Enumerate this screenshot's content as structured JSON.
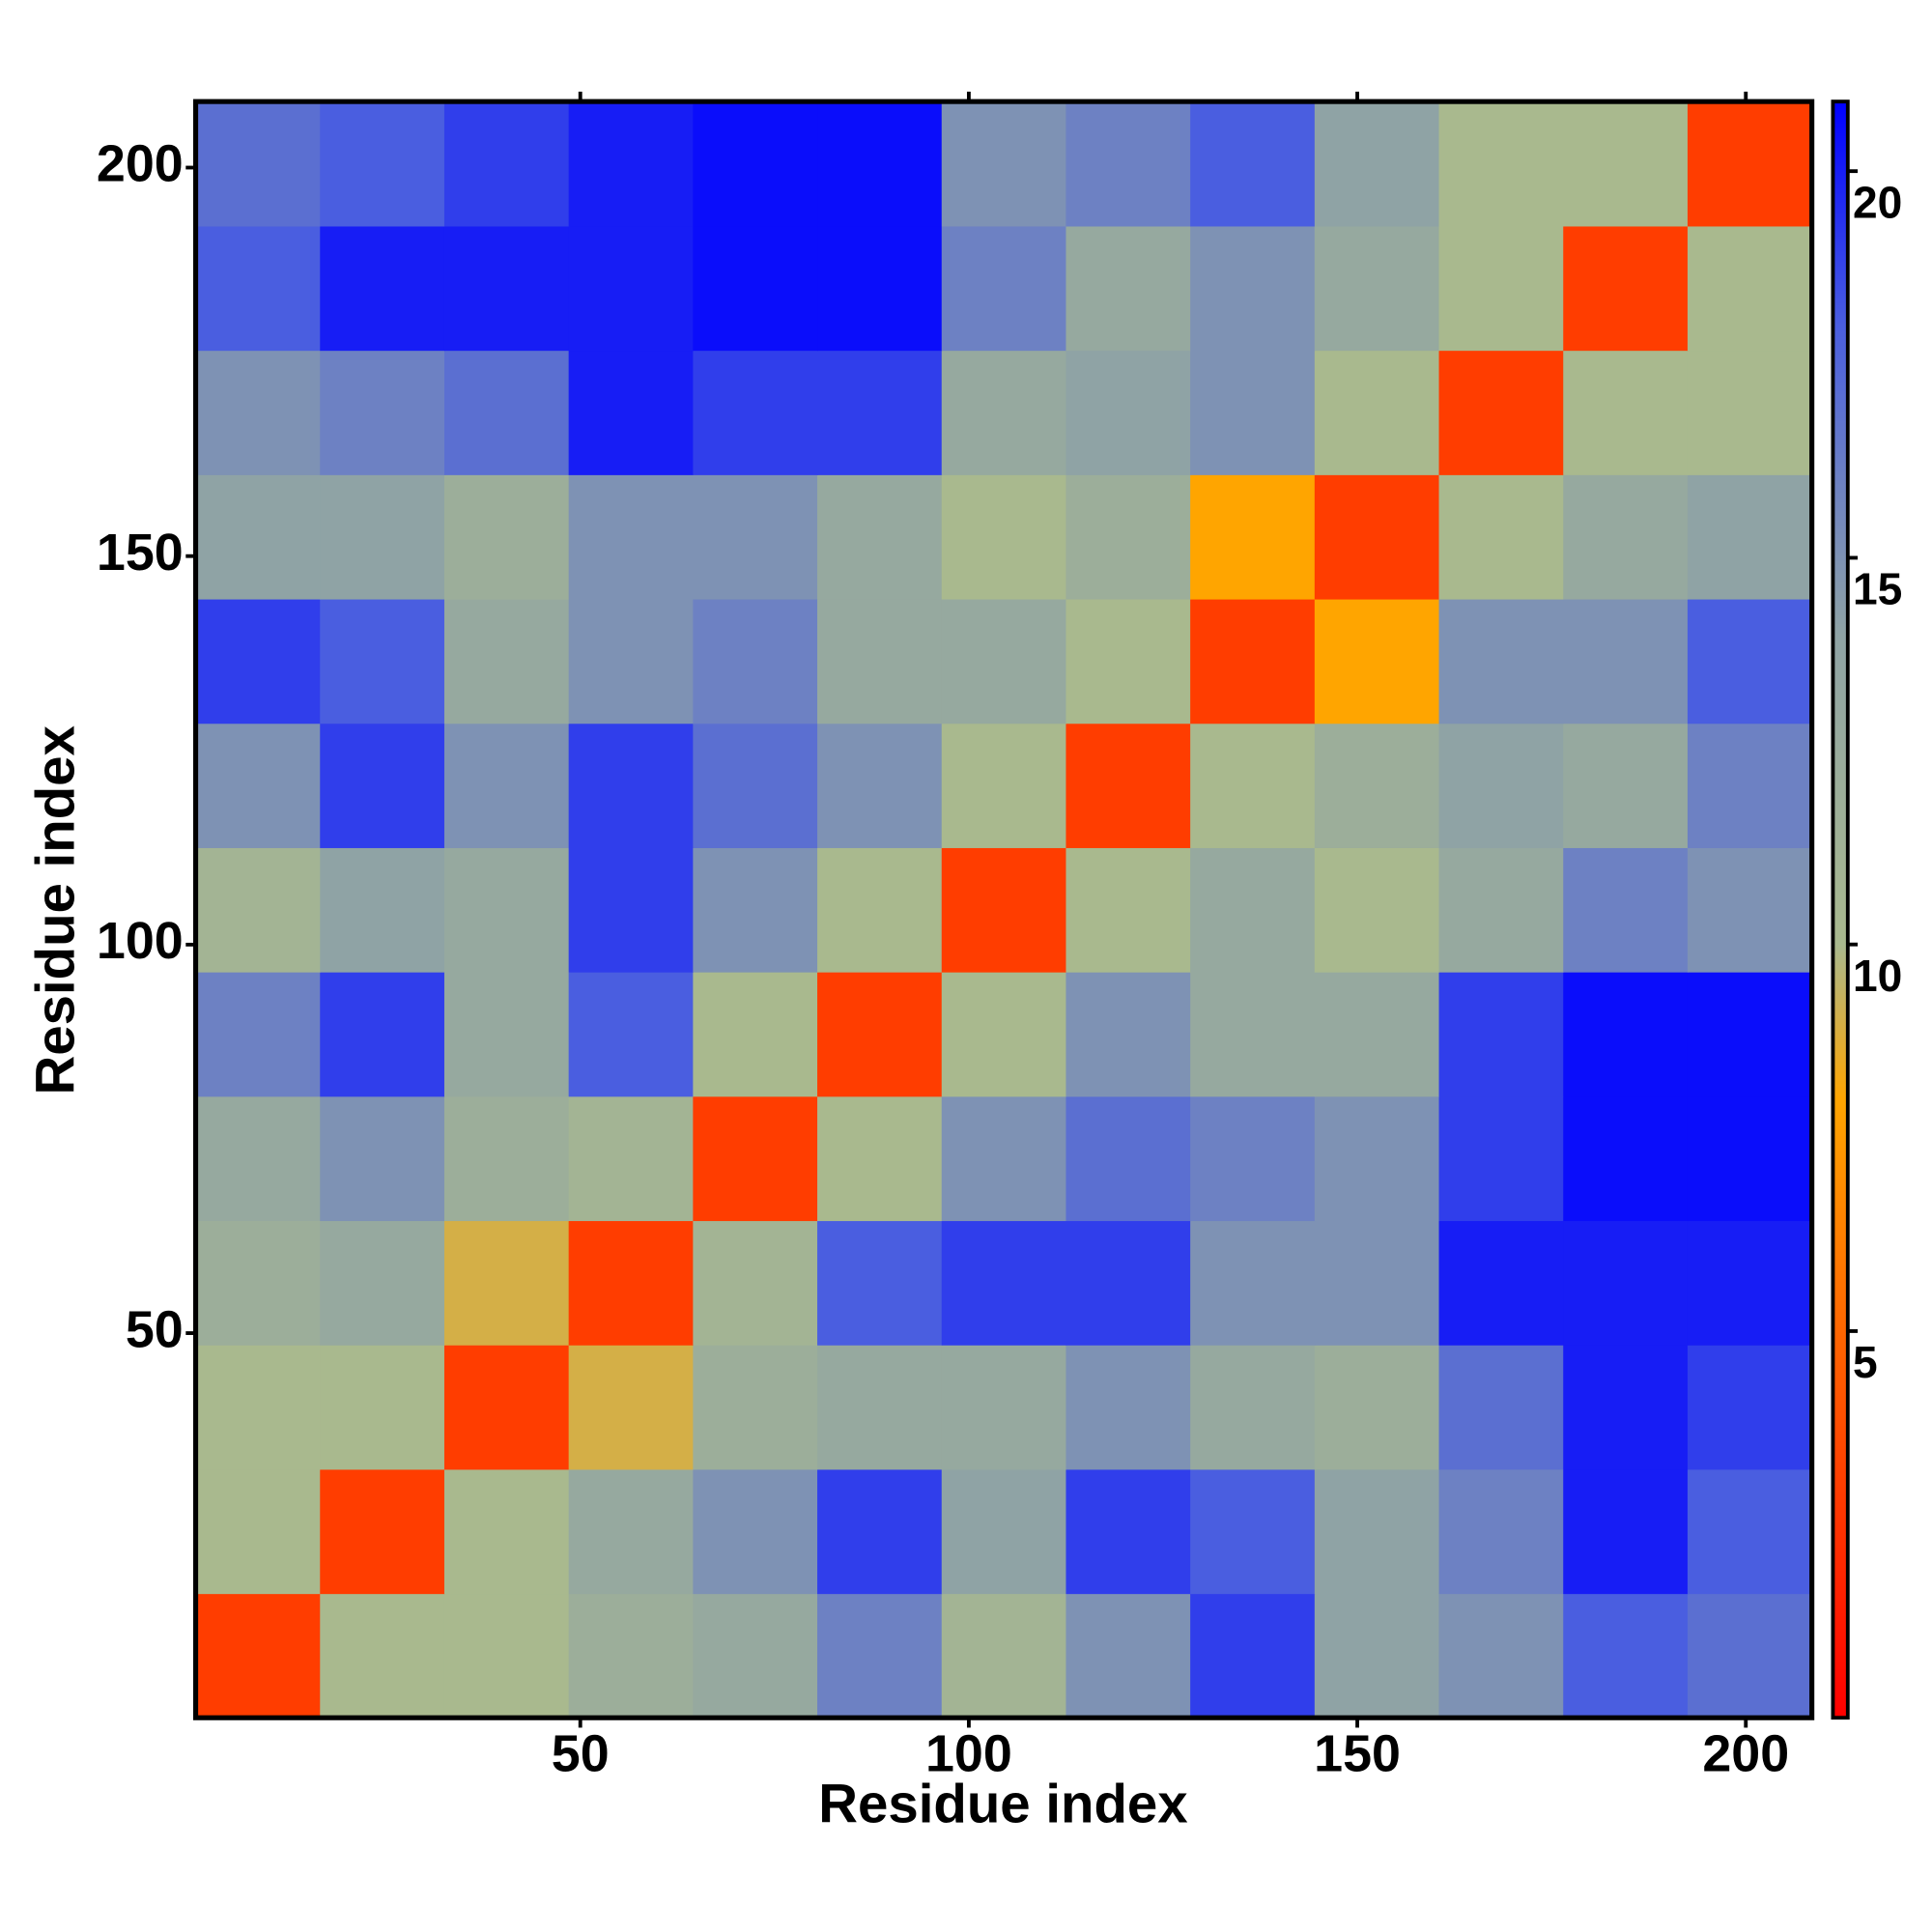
{
  "chart_data": {
    "type": "heatmap",
    "xlabel": "Residue index",
    "ylabel": "Residue index",
    "xbins": [
      0.5,
      16.5,
      32.5,
      48.5,
      64.5,
      80.5,
      96.5,
      112.5,
      128.5,
      144.5,
      160.5,
      176.5,
      192.5,
      208.5
    ],
    "ybins": [
      0.5,
      16.5,
      32.5,
      48.5,
      64.5,
      80.5,
      96.5,
      112.5,
      128.5,
      144.5,
      160.5,
      176.5,
      192.5,
      208.5
    ],
    "xlim": [
      0.5,
      208.5
    ],
    "ylim": [
      0.5,
      208.5
    ],
    "xticks": [
      50,
      100,
      150,
      200
    ],
    "yticks": [
      50,
      100,
      150,
      200
    ],
    "values": [
      [
        3,
        10,
        10,
        12,
        13,
        16,
        11,
        15,
        19,
        14,
        15,
        18,
        17
      ],
      [
        10,
        3,
        10,
        13,
        15,
        19,
        14,
        19,
        18,
        14,
        16,
        20,
        18
      ],
      [
        10,
        10,
        3,
        9,
        12,
        13,
        13,
        15,
        13,
        12,
        17,
        20,
        19
      ],
      [
        12,
        13,
        9,
        3,
        11,
        18,
        19,
        19,
        15,
        15,
        20,
        20,
        20
      ],
      [
        13,
        15,
        12,
        11,
        3,
        10,
        15,
        17,
        16,
        15,
        19,
        20.5,
        20.5
      ],
      [
        16,
        19,
        13,
        18,
        10,
        3,
        10,
        15,
        13,
        13,
        19,
        20.5,
        20.5
      ],
      [
        11,
        14,
        13,
        19,
        15,
        10,
        3,
        10,
        13,
        10,
        13,
        16,
        15
      ],
      [
        15,
        19,
        15,
        19,
        17,
        15,
        10,
        3,
        10,
        12,
        14,
        13,
        16
      ],
      [
        19,
        18,
        13,
        15,
        16,
        13,
        13,
        10,
        3,
        8,
        15,
        15,
        18
      ],
      [
        14,
        14,
        12,
        15,
        15,
        13,
        10,
        12,
        8,
        3,
        10,
        13,
        14
      ],
      [
        15,
        16,
        17,
        20,
        19,
        19,
        13,
        14,
        15,
        10,
        3,
        10,
        10
      ],
      [
        18,
        20,
        20,
        20,
        20.5,
        20.5,
        16,
        13,
        15,
        13,
        10,
        3,
        10
      ],
      [
        17,
        18,
        19,
        20,
        20.5,
        20.5,
        15,
        16,
        18,
        14,
        10,
        10,
        3
      ]
    ],
    "zlim": [
      0,
      20.9
    ],
    "zticks": [
      5,
      10,
      15,
      20
    ],
    "colorscale": [
      {
        "value": 0,
        "color": "#ff0000"
      },
      {
        "value": 6,
        "color": "#ff7a00"
      },
      {
        "value": 8,
        "color": "#ffa500"
      },
      {
        "value": 10,
        "color": "#a9b98e"
      },
      {
        "value": 14,
        "color": "#8fa3a5"
      },
      {
        "value": 18,
        "color": "#4a5ee0"
      },
      {
        "value": 20.9,
        "color": "#0000ff"
      }
    ]
  }
}
